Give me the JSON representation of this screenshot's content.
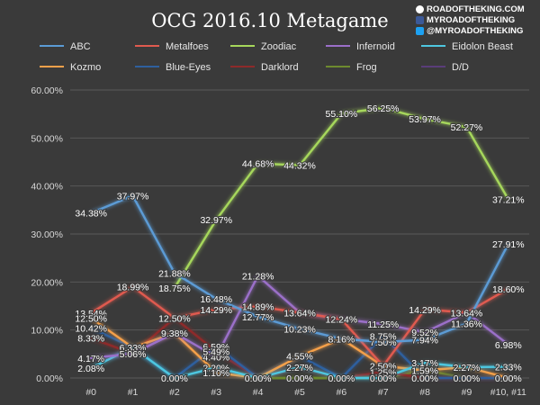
{
  "branding": {
    "site": "ROADOFTHEKING.COM",
    "facebook": "MYROADOFTHEKING",
    "twitter": "@MYROADOFTHEKING"
  },
  "chart_data": {
    "type": "line",
    "title": "OCG 2016.10 Metagame",
    "xlabel": "",
    "ylabel": "",
    "categories": [
      "#0",
      "#1",
      "#2",
      "#3",
      "#4",
      "#5",
      "#6",
      "#7",
      "#8",
      "#9",
      "#10, #11"
    ],
    "ylim": [
      0,
      60
    ],
    "y_ticks": [
      "0.00%",
      "10.00%",
      "20.00%",
      "30.00%",
      "40.00%",
      "50.00%",
      "60.00%"
    ],
    "grid": true,
    "legend_position": "top",
    "series": [
      {
        "name": "ABC",
        "color": "#5b9bd5",
        "values": [
          34.38,
          37.97,
          21.88,
          16.48,
          12.77,
          10.23,
          8.16,
          7.5,
          7.94,
          11.36,
          27.91
        ]
      },
      {
        "name": "Metalfoes",
        "color": "#e05a4f",
        "values": [
          13.54,
          18.99,
          12.5,
          14.29,
          14.89,
          13.64,
          12.24,
          2.5,
          14.29,
          13.64,
          18.6
        ]
      },
      {
        "name": "Zoodiac",
        "color": "#a6d75b",
        "values": [
          null,
          null,
          18.75,
          32.97,
          44.68,
          44.32,
          55.1,
          56.25,
          53.97,
          52.27,
          37.21
        ]
      },
      {
        "name": "Infernoid",
        "color": "#9b6fc9",
        "values": [
          4.17,
          5.06,
          9.38,
          4.4,
          21.28,
          13.64,
          12.24,
          11.25,
          9.52,
          13.64,
          6.98
        ]
      },
      {
        "name": "Eidolon Beast",
        "color": "#4ec7e0",
        "values": [
          2.08,
          6.33,
          0.0,
          2.2,
          0.0,
          2.27,
          0.0,
          0.0,
          3.17,
          2.27,
          2.33
        ]
      },
      {
        "name": "Kozmo",
        "color": "#f5a04a",
        "values": [
          12.5,
          6.33,
          9.38,
          1.1,
          0.0,
          4.55,
          8.16,
          2.5,
          1.59,
          2.27,
          0.0
        ]
      },
      {
        "name": "Blue-Eyes",
        "color": "#2e5f9e",
        "values": [
          10.42,
          6.33,
          0.0,
          6.59,
          0.0,
          4.55,
          0.0,
          8.75,
          0.0,
          0.0,
          0.0
        ]
      },
      {
        "name": "Darklord",
        "color": "#8e2a2a",
        "values": [
          8.33,
          5.06,
          12.5,
          5.49,
          0.0,
          2.27,
          0.0,
          1.25,
          0.0,
          0.0,
          0.0
        ]
      },
      {
        "name": "Frog",
        "color": "#6d8a2e",
        "values": [
          null,
          null,
          null,
          null,
          0.0,
          0.0,
          0.0,
          0.0,
          1.59,
          0.0,
          0.0
        ]
      },
      {
        "name": "D/D",
        "color": "#5a3d7a",
        "values": [
          null,
          null,
          null,
          null,
          0.0,
          0.0,
          0.0,
          0.0,
          0.0,
          0.0,
          0.0
        ]
      }
    ]
  }
}
